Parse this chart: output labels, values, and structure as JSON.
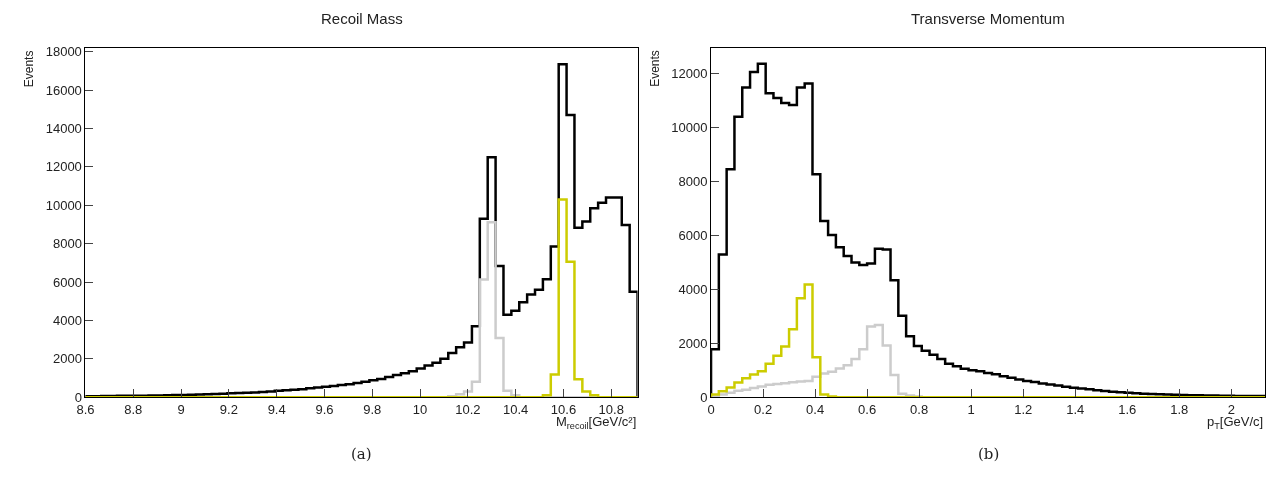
{
  "chart_data": [
    {
      "type": "histogram",
      "title": "Recoil Mass",
      "xlabel": "M$_{recoil}$[GeV/c²]",
      "ylabel": "Events",
      "bins": [
        8.6,
        8.633,
        8.666,
        8.699,
        8.732,
        8.765,
        8.798,
        8.831,
        8.864,
        8.897,
        8.93,
        8.963,
        8.996,
        9.029,
        9.062,
        9.095,
        9.128,
        9.161,
        9.194,
        9.227,
        9.26,
        9.293,
        9.326,
        9.359,
        9.392,
        9.425,
        9.458,
        9.491,
        9.524,
        9.557,
        9.59,
        9.623,
        9.656,
        9.689,
        9.722,
        9.755,
        9.788,
        9.821,
        9.854,
        9.887,
        9.92,
        9.953,
        9.986,
        10.019,
        10.052,
        10.085,
        10.118,
        10.151,
        10.184,
        10.217,
        10.25,
        10.283,
        10.316,
        10.349,
        10.382,
        10.415,
        10.448,
        10.481,
        10.514,
        10.547,
        10.58,
        10.613,
        10.646,
        10.679,
        10.712,
        10.745,
        10.778,
        10.811,
        10.844,
        10.877,
        10.91
      ],
      "series": [
        {
          "color": "#000000",
          "values": [
            50,
            50,
            60,
            60,
            70,
            70,
            80,
            80,
            90,
            90,
            100,
            110,
            120,
            130,
            140,
            150,
            160,
            180,
            200,
            220,
            230,
            250,
            270,
            300,
            330,
            360,
            390,
            420,
            460,
            500,
            540,
            580,
            630,
            680,
            740,
            800,
            880,
            950,
            1050,
            1150,
            1250,
            1350,
            1500,
            1650,
            1800,
            2000,
            2300,
            2600,
            2850,
            3700,
            9300,
            12500,
            6840,
            4300,
            4500,
            4950,
            5350,
            5600,
            6150,
            7850,
            17350,
            14700,
            8830,
            9150,
            9850,
            10130,
            10400,
            10400,
            8970,
            5500
          ]
        },
        {
          "color": "#cccccc",
          "values": [
            0,
            0,
            0,
            0,
            0,
            0,
            0,
            0,
            0,
            0,
            0,
            0,
            0,
            0,
            0,
            0,
            0,
            0,
            0,
            0,
            0,
            0,
            0,
            0,
            0,
            0,
            0,
            0,
            0,
            0,
            0,
            0,
            0,
            0,
            0,
            0,
            0,
            0,
            0,
            0,
            0,
            0,
            0,
            0,
            0,
            0,
            50,
            150,
            300,
            810,
            6130,
            9120,
            3090,
            340,
            100,
            0,
            0,
            0,
            0,
            0,
            0,
            0,
            0,
            0,
            0,
            0,
            0,
            0,
            0,
            0
          ]
        },
        {
          "color": "#cccc00",
          "values": [
            0,
            0,
            0,
            0,
            0,
            0,
            0,
            0,
            0,
            0,
            0,
            0,
            0,
            0,
            0,
            0,
            0,
            0,
            0,
            0,
            0,
            0,
            0,
            0,
            0,
            0,
            0,
            0,
            0,
            0,
            0,
            0,
            0,
            0,
            0,
            0,
            0,
            0,
            0,
            0,
            0,
            0,
            0,
            0,
            0,
            0,
            0,
            0,
            0,
            0,
            0,
            0,
            0,
            0,
            0,
            0,
            0,
            0,
            100,
            1180,
            10300,
            7060,
            930,
            300,
            100,
            0,
            0,
            0,
            0,
            0
          ]
        }
      ],
      "xlim": [
        8.6,
        10.91
      ],
      "xticks": [
        8.6,
        8.8,
        {
          "value": 9.0,
          "label": "9"
        },
        9.2,
        9.4,
        9.6,
        9.8,
        {
          "value": 10.0,
          "label": "10"
        },
        10.2,
        10.4,
        10.6,
        10.8
      ],
      "ylim": [
        0,
        18200
      ],
      "yticks": [
        0,
        2000,
        4000,
        6000,
        8000,
        10000,
        12000,
        14000,
        16000,
        18000
      ],
      "annotations": [
        "(a)"
      ]
    },
    {
      "type": "histogram",
      "title": "Transverse Momentum",
      "xlabel": "p$_{T}$[GeV/c]",
      "ylabel": "Events",
      "bins": [
        0,
        0.03,
        0.06,
        0.09,
        0.12,
        0.15,
        0.18,
        0.21,
        0.24,
        0.27,
        0.3,
        0.33,
        0.36,
        0.39,
        0.42,
        0.45,
        0.48,
        0.51,
        0.54,
        0.57,
        0.6,
        0.63,
        0.66,
        0.69,
        0.72,
        0.75,
        0.78,
        0.81,
        0.84,
        0.87,
        0.9,
        0.93,
        0.96,
        0.99,
        1.02,
        1.05,
        1.08,
        1.11,
        1.14,
        1.17,
        1.2,
        1.23,
        1.26,
        1.29,
        1.32,
        1.35,
        1.38,
        1.41,
        1.44,
        1.47,
        1.5,
        1.53,
        1.56,
        1.59,
        1.62,
        1.65,
        1.68,
        1.71,
        1.74,
        1.77,
        1.8,
        1.83,
        1.86,
        1.89,
        1.92,
        1.95,
        1.98,
        2.01,
        2.04,
        2.07,
        2.1,
        2.13
      ],
      "series": [
        {
          "color": "#000000",
          "values": [
            1780,
            5290,
            8450,
            10400,
            11480,
            12060,
            12360,
            11270,
            11090,
            10910,
            10830,
            11480,
            11630,
            8270,
            6530,
            6010,
            5560,
            5230,
            4990,
            4900,
            4960,
            5500,
            5480,
            4340,
            3020,
            2260,
            1900,
            1720,
            1570,
            1420,
            1240,
            1150,
            1050,
            1000,
            960,
            900,
            850,
            780,
            720,
            660,
            600,
            560,
            510,
            470,
            430,
            390,
            350,
            320,
            290,
            260,
            230,
            200,
            180,
            160,
            145,
            130,
            120,
            110,
            100,
            90,
            80,
            75,
            70,
            65,
            60,
            55,
            50,
            48,
            45,
            42,
            40
          ]
        },
        {
          "color": "#cccccc",
          "values": [
            30,
            100,
            160,
            240,
            280,
            340,
            400,
            460,
            490,
            520,
            550,
            580,
            600,
            760,
            880,
            940,
            1060,
            1180,
            1420,
            1780,
            2620,
            2680,
            1920,
            820,
            130,
            60,
            30,
            0,
            0,
            0,
            0,
            0,
            0,
            0,
            0,
            0,
            0,
            0,
            0,
            0,
            0,
            0,
            0,
            0,
            0,
            0,
            0,
            0,
            0,
            0,
            0,
            0,
            0,
            0,
            0,
            0,
            0,
            0,
            0,
            0,
            0,
            0,
            0,
            0,
            0,
            0,
            0,
            0,
            0,
            0,
            0
          ]
        },
        {
          "color": "#cccc00",
          "values": [
            100,
            220,
            360,
            540,
            700,
            840,
            960,
            1240,
            1540,
            1880,
            2520,
            3670,
            4180,
            1480,
            100,
            30,
            0,
            0,
            0,
            0,
            0,
            0,
            0,
            0,
            0,
            0,
            0,
            0,
            0,
            0,
            0,
            0,
            0,
            0,
            0,
            0,
            0,
            0,
            0,
            0,
            0,
            0,
            0,
            0,
            0,
            0,
            0,
            0,
            0,
            0,
            0,
            0,
            0,
            0,
            0,
            0,
            0,
            0,
            0,
            0,
            0,
            0,
            0,
            0,
            0,
            0,
            0,
            0,
            0,
            0,
            0
          ]
        }
      ],
      "xlim": [
        0,
        2.13
      ],
      "xticks": [
        0,
        0.2,
        0.4,
        0.6,
        0.8,
        {
          "value": 1.0,
          "label": "1"
        },
        1.2,
        1.4,
        1.6,
        1.8,
        {
          "value": 2.0,
          "label": "2"
        }
      ],
      "ylim": [
        0,
        12950
      ],
      "yticks": [
        0,
        2000,
        4000,
        6000,
        8000,
        10000,
        12000
      ],
      "annotations": [
        "(b)"
      ]
    }
  ]
}
